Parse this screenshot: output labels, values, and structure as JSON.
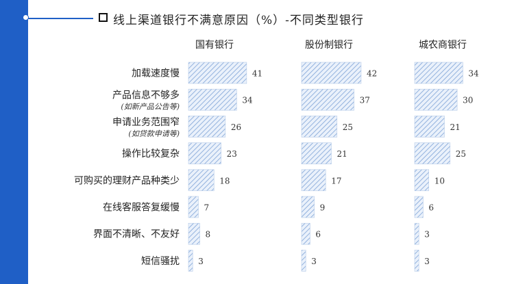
{
  "title": "线上渠道银行不满意原因（%）-不同类型银行",
  "colors": {
    "accent": "#1f5fc6",
    "bar_stroke": "#7ea3d6",
    "bar_fill": "#eaf1fb"
  },
  "chart_data": {
    "type": "bar",
    "orientation": "horizontal",
    "pattern": "diagonal-hatch",
    "categories": [
      {
        "label": "加载速度慢",
        "sublabel": ""
      },
      {
        "label": "产品信息不够多",
        "sublabel": "(如新产品公告等)"
      },
      {
        "label": "申请业务范围窄",
        "sublabel": "(如贷款申请等)"
      },
      {
        "label": "操作比较复杂",
        "sublabel": ""
      },
      {
        "label": "可购买的理财产品种类少",
        "sublabel": ""
      },
      {
        "label": "在线客服答复缓慢",
        "sublabel": ""
      },
      {
        "label": "界面不清晰、不友好",
        "sublabel": ""
      },
      {
        "label": "短信骚扰",
        "sublabel": ""
      }
    ],
    "series": [
      {
        "name": "国有银行",
        "values": [
          41,
          34,
          26,
          23,
          18,
          7,
          8,
          3
        ]
      },
      {
        "name": "股份制银行",
        "values": [
          42,
          37,
          25,
          21,
          17,
          9,
          6,
          3
        ]
      },
      {
        "name": "城农商银行",
        "values": [
          34,
          30,
          21,
          25,
          10,
          6,
          3,
          3
        ]
      }
    ]
  }
}
